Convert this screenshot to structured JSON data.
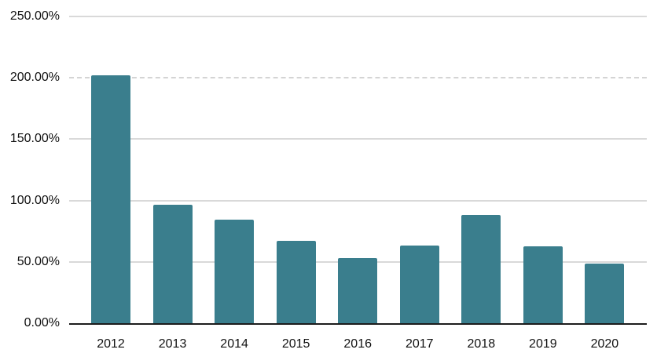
{
  "chart_data": {
    "type": "bar",
    "categories": [
      "2012",
      "2013",
      "2014",
      "2015",
      "2016",
      "2017",
      "2018",
      "2019",
      "2020"
    ],
    "values": [
      203,
      97,
      85,
      68,
      54,
      64,
      89,
      63,
      49
    ],
    "title": "",
    "xlabel": "",
    "ylabel": "",
    "ylim": [
      0,
      250
    ],
    "ytick_interval": 50,
    "yticks": [
      {
        "value": 0,
        "label": "0.00%"
      },
      {
        "value": 50,
        "label": "50.00%"
      },
      {
        "value": 100,
        "label": "100.00%"
      },
      {
        "value": 150,
        "label": "150.00%"
      },
      {
        "value": 200,
        "label": "200.00%"
      },
      {
        "value": 250,
        "label": "250.00%"
      }
    ],
    "grid": "horizontal",
    "legend": "none",
    "value_format": "percent"
  },
  "colors": {
    "bar": "#3a7e8d",
    "gridline": "#d9d9d9",
    "axis_line": "#1c1c1c",
    "label_text": "#111111",
    "background": "#ffffff"
  }
}
